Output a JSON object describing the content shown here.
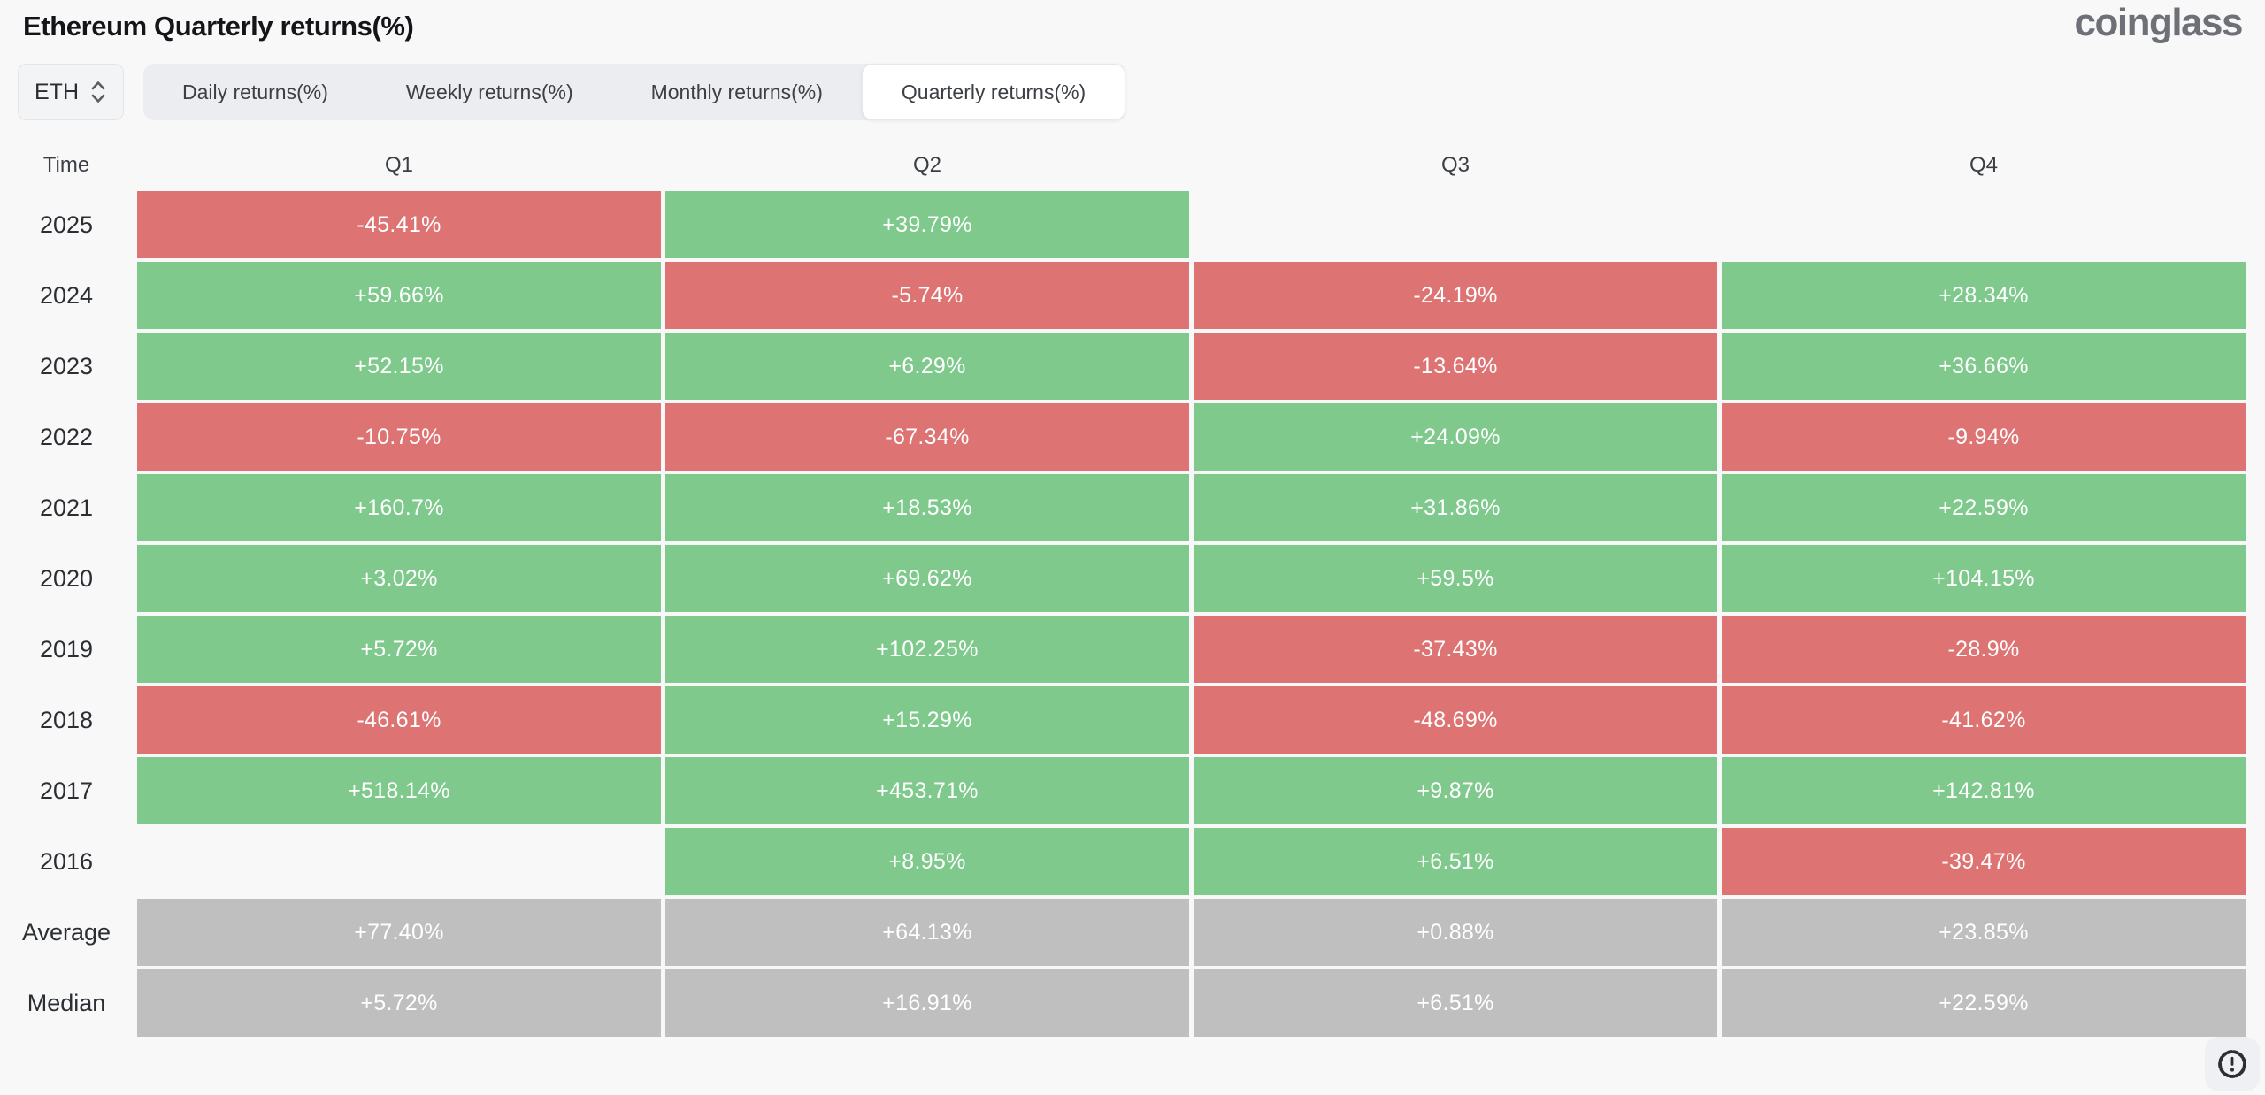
{
  "page": {
    "title": "Ethereum Quarterly returns(%)",
    "logo_text": "coinglass"
  },
  "controls": {
    "asset_selector": {
      "value": "ETH",
      "icon": "unfold-chevrons-icon"
    },
    "tabs": [
      {
        "label": "Daily returns(%)",
        "active": false
      },
      {
        "label": "Weekly returns(%)",
        "active": false
      },
      {
        "label": "Monthly returns(%)",
        "active": false
      },
      {
        "label": "Quarterly returns(%)",
        "active": true
      }
    ]
  },
  "table": {
    "columns": [
      "Time",
      "Q1",
      "Q2",
      "Q3",
      "Q4"
    ],
    "rows": [
      {
        "label": "2025",
        "cells": [
          {
            "text": "-45.41%",
            "type": "down"
          },
          {
            "text": "+39.79%",
            "type": "up"
          },
          {
            "text": "",
            "type": "empty"
          },
          {
            "text": "",
            "type": "empty"
          }
        ]
      },
      {
        "label": "2024",
        "cells": [
          {
            "text": "+59.66%",
            "type": "up"
          },
          {
            "text": "-5.74%",
            "type": "down"
          },
          {
            "text": "-24.19%",
            "type": "down"
          },
          {
            "text": "+28.34%",
            "type": "up"
          }
        ]
      },
      {
        "label": "2023",
        "cells": [
          {
            "text": "+52.15%",
            "type": "up"
          },
          {
            "text": "+6.29%",
            "type": "up"
          },
          {
            "text": "-13.64%",
            "type": "down"
          },
          {
            "text": "+36.66%",
            "type": "up"
          }
        ]
      },
      {
        "label": "2022",
        "cells": [
          {
            "text": "-10.75%",
            "type": "down"
          },
          {
            "text": "-67.34%",
            "type": "down"
          },
          {
            "text": "+24.09%",
            "type": "up"
          },
          {
            "text": "-9.94%",
            "type": "down"
          }
        ]
      },
      {
        "label": "2021",
        "cells": [
          {
            "text": "+160.7%",
            "type": "up"
          },
          {
            "text": "+18.53%",
            "type": "up"
          },
          {
            "text": "+31.86%",
            "type": "up"
          },
          {
            "text": "+22.59%",
            "type": "up"
          }
        ]
      },
      {
        "label": "2020",
        "cells": [
          {
            "text": "+3.02%",
            "type": "up"
          },
          {
            "text": "+69.62%",
            "type": "up"
          },
          {
            "text": "+59.5%",
            "type": "up"
          },
          {
            "text": "+104.15%",
            "type": "up"
          }
        ]
      },
      {
        "label": "2019",
        "cells": [
          {
            "text": "+5.72%",
            "type": "up"
          },
          {
            "text": "+102.25%",
            "type": "up"
          },
          {
            "text": "-37.43%",
            "type": "down"
          },
          {
            "text": "-28.9%",
            "type": "down"
          }
        ]
      },
      {
        "label": "2018",
        "cells": [
          {
            "text": "-46.61%",
            "type": "down"
          },
          {
            "text": "+15.29%",
            "type": "up"
          },
          {
            "text": "-48.69%",
            "type": "down"
          },
          {
            "text": "-41.62%",
            "type": "down"
          }
        ]
      },
      {
        "label": "2017",
        "cells": [
          {
            "text": "+518.14%",
            "type": "up"
          },
          {
            "text": "+453.71%",
            "type": "up"
          },
          {
            "text": "+9.87%",
            "type": "up"
          },
          {
            "text": "+142.81%",
            "type": "up"
          }
        ]
      },
      {
        "label": "2016",
        "cells": [
          {
            "text": "",
            "type": "empty"
          },
          {
            "text": "+8.95%",
            "type": "up"
          },
          {
            "text": "+6.51%",
            "type": "up"
          },
          {
            "text": "-39.47%",
            "type": "down"
          }
        ]
      },
      {
        "label": "Average",
        "cells": [
          {
            "text": "+77.40%",
            "type": "neutral"
          },
          {
            "text": "+64.13%",
            "type": "neutral"
          },
          {
            "text": "+0.88%",
            "type": "neutral"
          },
          {
            "text": "+23.85%",
            "type": "neutral"
          }
        ]
      },
      {
        "label": "Median",
        "cells": [
          {
            "text": "+5.72%",
            "type": "neutral"
          },
          {
            "text": "+16.91%",
            "type": "neutral"
          },
          {
            "text": "+6.51%",
            "type": "neutral"
          },
          {
            "text": "+22.59%",
            "type": "neutral"
          }
        ]
      }
    ]
  },
  "colors": {
    "positive_green": "#7fc98d",
    "negative_red": "#dd7473",
    "aggregate_gray": "#bfbfbf",
    "page_background": "#f8f8f9",
    "logo_gray": "#6d7177"
  },
  "chart_data": {
    "type": "heatmap",
    "title": "Ethereum Quarterly returns(%)",
    "asset": "ETH",
    "columns": [
      "Q1",
      "Q2",
      "Q3",
      "Q4"
    ],
    "rows": [
      "2025",
      "2024",
      "2023",
      "2022",
      "2021",
      "2020",
      "2019",
      "2018",
      "2017",
      "2016",
      "Average",
      "Median"
    ],
    "values_percent": [
      [
        -45.41,
        39.79,
        null,
        null
      ],
      [
        59.66,
        -5.74,
        -24.19,
        28.34
      ],
      [
        52.15,
        6.29,
        -13.64,
        36.66
      ],
      [
        -10.75,
        -67.34,
        24.09,
        -9.94
      ],
      [
        160.7,
        18.53,
        31.86,
        22.59
      ],
      [
        3.02,
        69.62,
        59.5,
        104.15
      ],
      [
        5.72,
        102.25,
        -37.43,
        -28.9
      ],
      [
        -46.61,
        15.29,
        -48.69,
        -41.62
      ],
      [
        518.14,
        453.71,
        9.87,
        142.81
      ],
      [
        null,
        8.95,
        6.51,
        -39.47
      ],
      [
        77.4,
        64.13,
        0.88,
        23.85
      ],
      [
        5.72,
        16.91,
        6.51,
        22.59
      ]
    ],
    "color_rule": "green = positive return, red = negative return, gray = Average/Median aggregate rows, blank = no data",
    "legend_position": "none",
    "grid": false
  }
}
